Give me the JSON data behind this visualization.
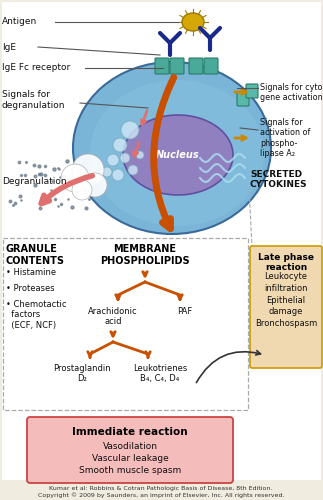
{
  "figure_bg": "#f0ece0",
  "cell_color_outer": "#6a9fcc",
  "cell_color_inner": "#7ab0d8",
  "nucleus_color": "#8878b8",
  "nucleus_label": "Nucleus",
  "antigen_color": "#d4a800",
  "antibody_color": "#1a2a8a",
  "receptor_color": "#4aaa99",
  "arrow_orange": "#c85000",
  "arrow_pink": "#e07070",
  "arrow_gold": "#cc8800",
  "text_dark": "#111111",
  "text_bold_dark": "#000000",
  "granule_title": "GRANULE\nCONTENTS",
  "membrane_title": "MEMBRANE\nPHOSPHOLIPIDS",
  "arachidonic": "Arachidonic\nacid",
  "paf": "PAF",
  "prostaglandin": "Prostaglandin\nD₂",
  "leukotrienes": "Leukotrienes\nB₄, C₄, D₄",
  "late_phase_title": "Late phase\nreaction",
  "late_phase_items": "Leukocyte\ninfiltration\nEpithelial\ndamage\nBronchospasm",
  "immediate_title": "Immediate reaction",
  "immediate_items": "Vasodilation\nVascular leakage\nSmooth muscle spasm",
  "footer1": "Kumar et al: Robbins & Cotran Pathologic Basis of Disease, 8th Edition.",
  "footer2": "Copyright © 2009 by Saunders, an imprint of Elsevier, Inc. All rights reserved.",
  "box_late_bg": "#f0d9b0",
  "box_late_edge": "#cc9900",
  "box_imm_bg": "#f5bcbc",
  "box_imm_edge": "#cc4444",
  "dashed_color": "#aaaaaa",
  "line_color": "#555555",
  "lbl_antigen": "Antigen",
  "lbl_ige": "IgE",
  "lbl_fc": "IgE Fc receptor",
  "lbl_signals_deg": "Signals for\ndegranulation",
  "lbl_degranulation": "Degranulation",
  "lbl_cytokine": "Signals for cytokine\ngene activation",
  "lbl_phospholipase": "Signals for\nactivation of\nphospho-\nlipase A₂",
  "lbl_secreted": "SECRETED\nCYTOKINES"
}
